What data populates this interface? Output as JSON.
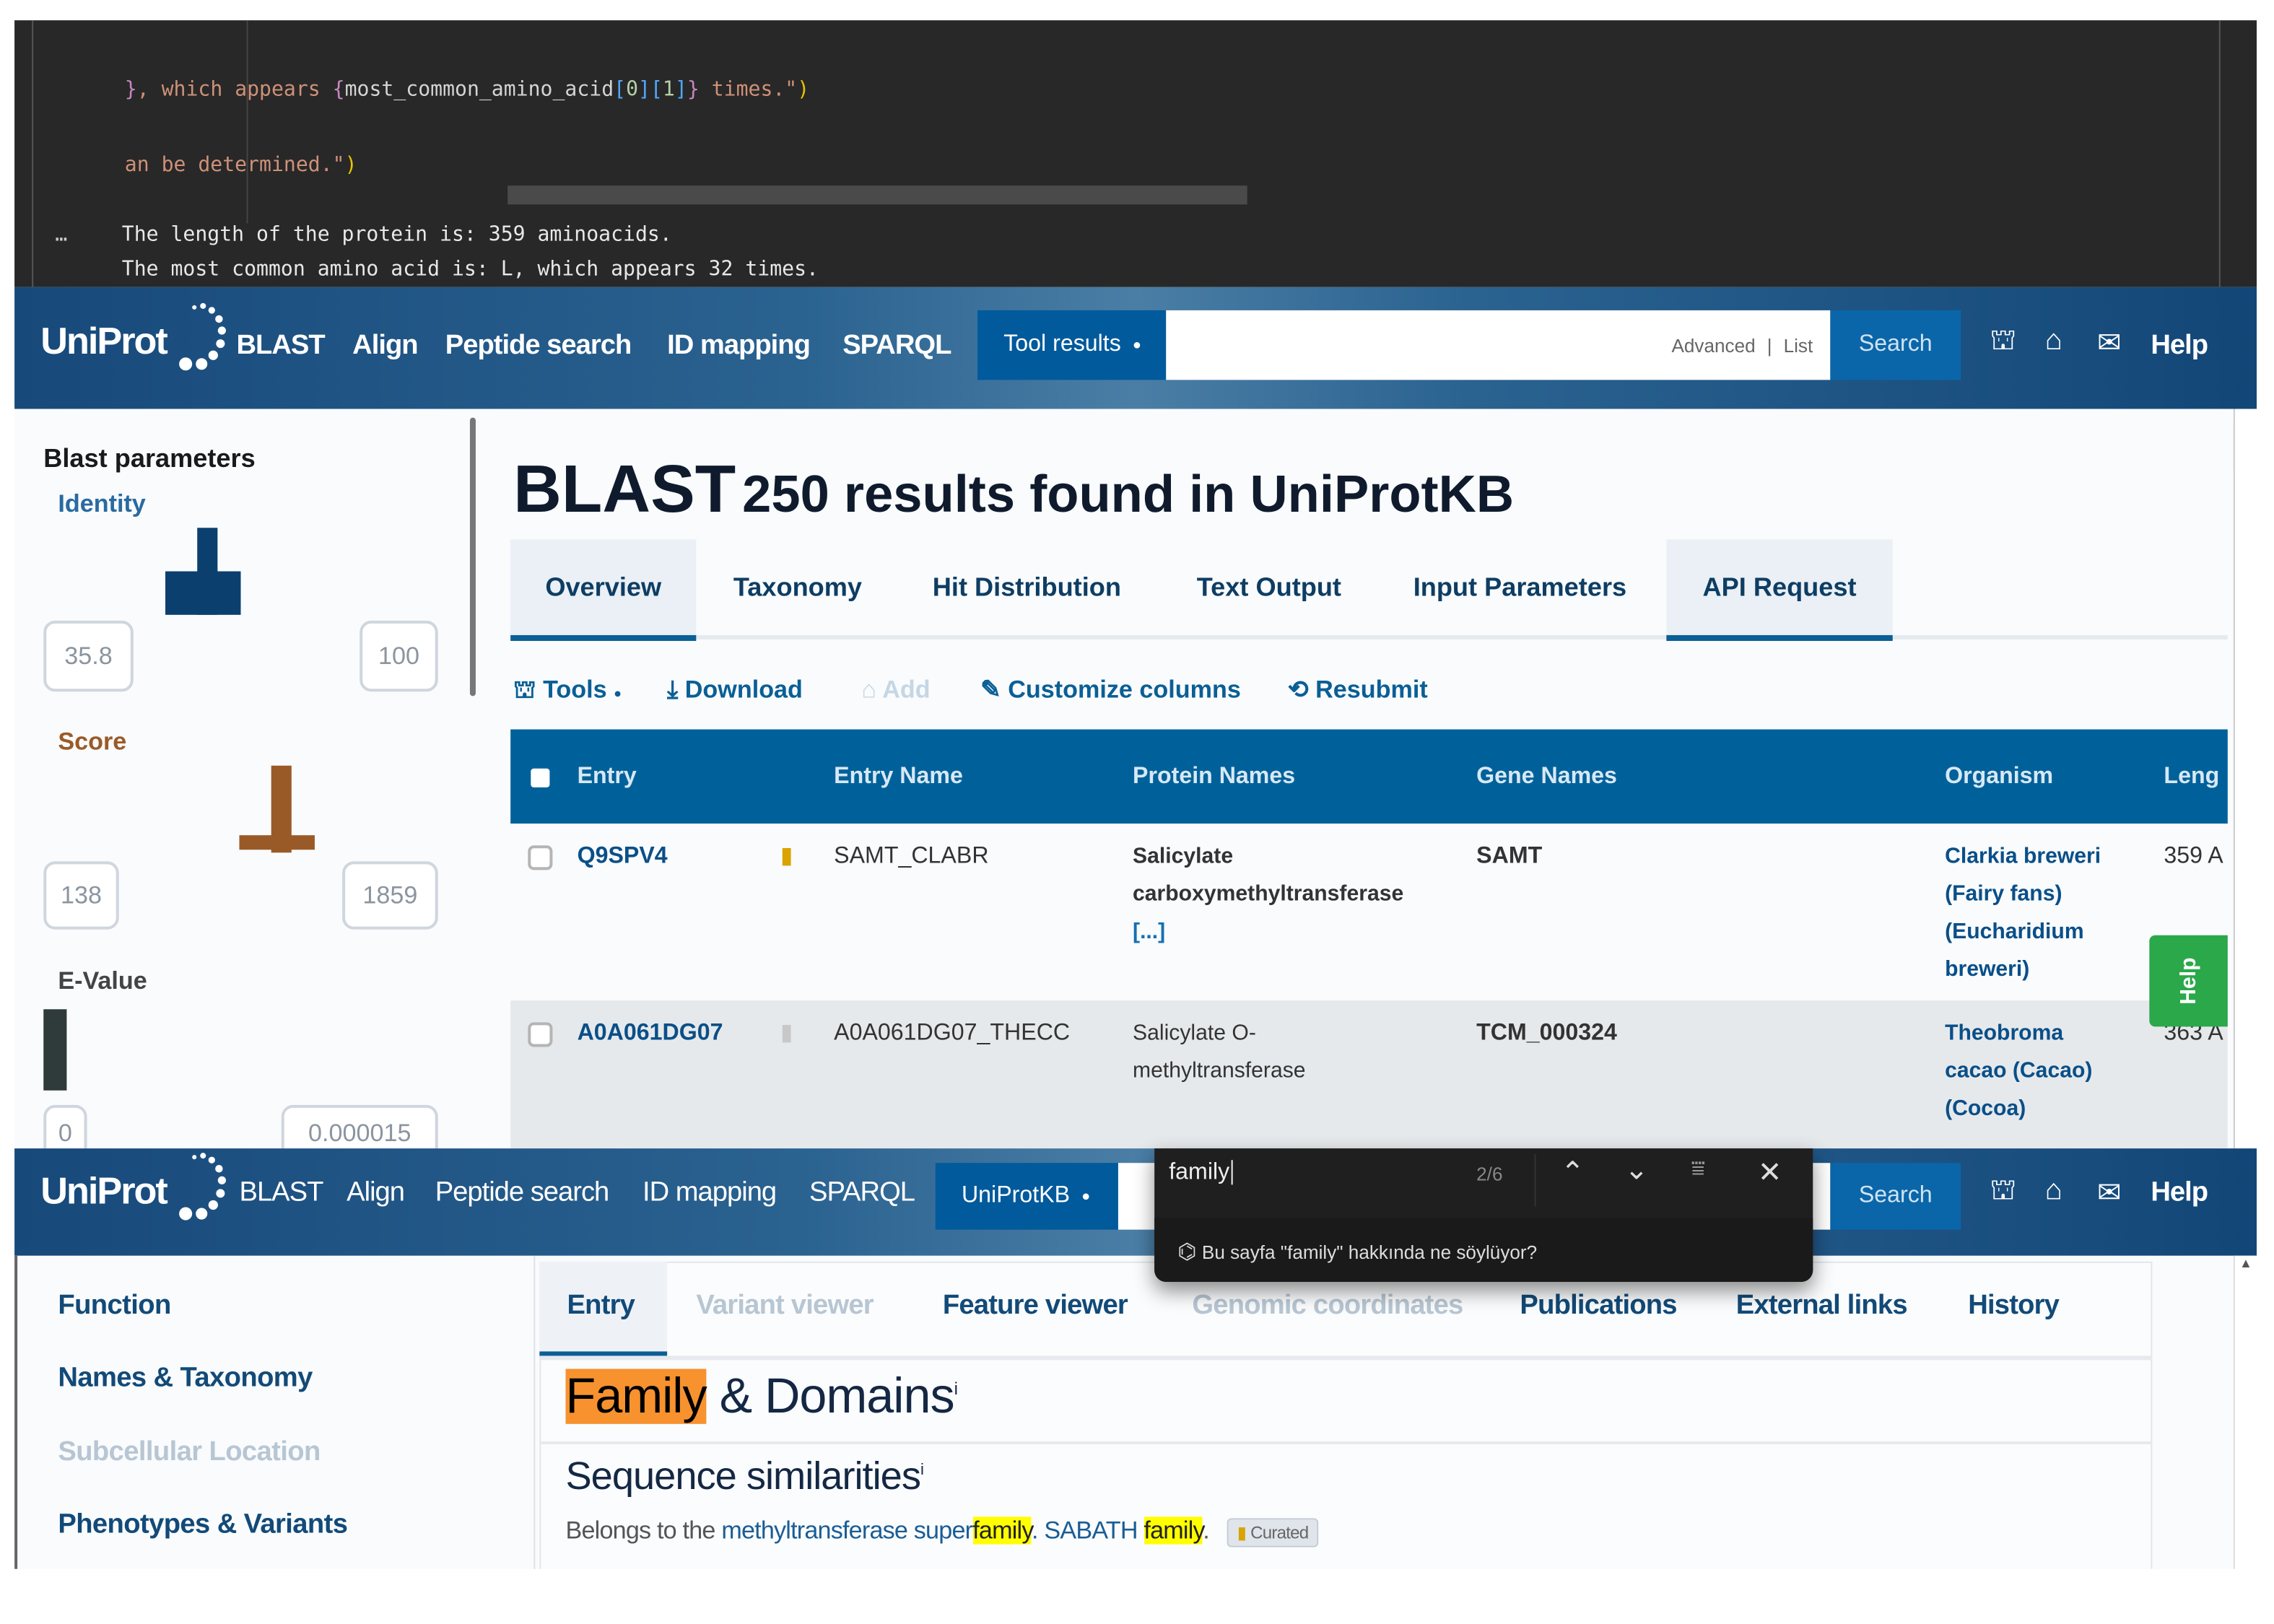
{
  "code_panel": {
    "lines": [
      {
        "p1": "}",
        "p2": ", which appears ",
        "p3": "{",
        "p4": "most_common_amino_acid",
        "p5": "[",
        "p6": "0",
        "p7": "][",
        "p8": "1",
        "p9": "]",
        "p10": "}",
        "p11": " times.\"",
        "p12": ")"
      },
      {
        "p1": "an be determined.\"",
        "p2": ")"
      }
    ],
    "output_marker": "…",
    "output": [
      "The length of the protein is: 359 aminoacids.",
      "The most common amino acid is: L, which appears 32 times."
    ]
  },
  "header1": {
    "logo": "UniProt",
    "nav": [
      "BLAST",
      "Align",
      "Peptide search",
      "ID mapping",
      "SPARQL"
    ],
    "scope": "Tool results",
    "search_value": "",
    "advanced": "Advanced",
    "list": "List",
    "search_button": "Search",
    "icons": [
      "tools-icon",
      "basket-icon",
      "mail-icon"
    ],
    "help": "Help"
  },
  "blast_sidebar": {
    "title": "Blast parameters",
    "identity": {
      "label": "Identity",
      "min": "35.8",
      "max": "100",
      "color": "#0b3f6e"
    },
    "score": {
      "label": "Score",
      "min": "138",
      "max": "1859",
      "color": "#9a5a27"
    },
    "evalue": {
      "label": "E-Value",
      "min": "0",
      "max": "0.000015",
      "color": "#2f3b3a"
    }
  },
  "blast_main": {
    "title_strong": "BLAST",
    "title_rest": "250 results found in UniProtKB",
    "tabs": [
      "Overview",
      "Taxonomy",
      "Hit Distribution",
      "Text Output",
      "Input Parameters",
      "API Request"
    ],
    "active_tab": "Overview",
    "toolbar": {
      "tools": "Tools",
      "download": "Download",
      "add": "Add",
      "customize": "Customize columns",
      "resubmit": "Resubmit"
    },
    "columns": [
      "Entry",
      "Entry Name",
      "Protein Names",
      "Gene Names",
      "Organism",
      "Leng"
    ],
    "rows": [
      {
        "entry": "Q9SPV4",
        "reviewed": true,
        "entry_name": "SAMT_CLABR",
        "protein_line1": "Salicylate",
        "protein_line2": "carboxymethyltransferase",
        "protein_more": "[...]",
        "gene": "SAMT",
        "organism": [
          "Clarkia breweri",
          "(Fairy fans)",
          "(Eucharidium",
          "breweri)"
        ],
        "length": "359 A"
      },
      {
        "entry": "A0A061DG07",
        "reviewed": false,
        "entry_name": "A0A061DG07_THECC",
        "protein_line1": "Salicylate O-",
        "protein_line2": "methyltransferase",
        "gene": "TCM_000324",
        "organism": [
          "Theobroma",
          "cacao (Cacao)",
          "(Cocoa)"
        ],
        "length": "363 A"
      }
    ],
    "help_tab": "Help"
  },
  "header2": {
    "logo": "UniProt",
    "nav": [
      "BLAST",
      "Align",
      "Peptide search",
      "ID mapping",
      "SPARQL"
    ],
    "scope": "UniProtKB",
    "search_button": "Search",
    "help": "Help"
  },
  "find_bar": {
    "query": "family",
    "count": "2/6",
    "suggestion": "Bu sayfa \"family\" hakkında ne söylüyor?"
  },
  "entry_sidebar": {
    "items": [
      {
        "label": "Function",
        "enabled": true
      },
      {
        "label": "Names & Taxonomy",
        "enabled": true
      },
      {
        "label": "Subcellular Location",
        "enabled": false
      },
      {
        "label": "Phenotypes & Variants",
        "enabled": true
      }
    ]
  },
  "entry_main": {
    "tabs": [
      {
        "label": "Entry",
        "enabled": true,
        "active": true
      },
      {
        "label": "Variant viewer",
        "enabled": false
      },
      {
        "label": "Feature viewer",
        "enabled": true
      },
      {
        "label": "Genomic coordinates",
        "enabled": false
      },
      {
        "label": "Publications",
        "enabled": true
      },
      {
        "label": "External links",
        "enabled": true
      },
      {
        "label": "History",
        "enabled": true
      }
    ],
    "section_highlight": "Family",
    "section_rest": " & Domains",
    "info_mark": "i",
    "subsection": "Sequence similarities",
    "sentence": {
      "prefix": "Belongs to the ",
      "link1": "methyltransferase super",
      "hl1": "family",
      "mid": ". SABATH ",
      "hl2": "family",
      "end": ".",
      "badge": "Curated"
    },
    "highlight_current": "#f7922f",
    "highlight_other": "#ffff00"
  }
}
